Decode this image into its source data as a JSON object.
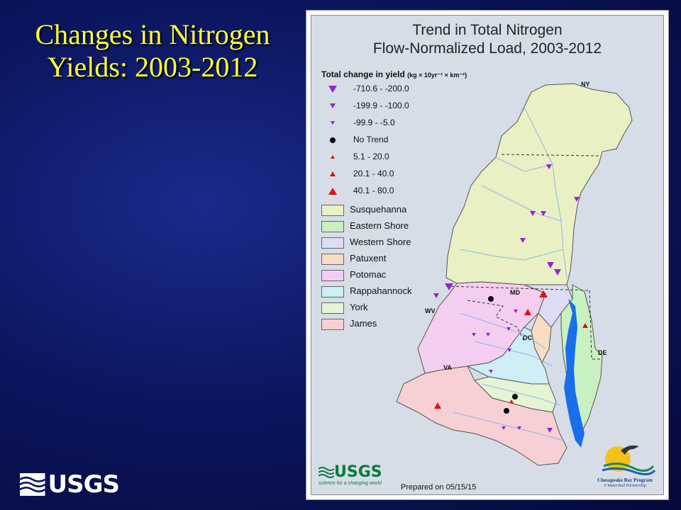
{
  "slide": {
    "title_line1": "Changes in Nitrogen",
    "title_line2": "Yields: 2003-2012",
    "logo_text": "USGS"
  },
  "map": {
    "title_line1": "Trend in Total Nitrogen",
    "title_line2": "Flow-Normalized Load, 2003-2012",
    "legend_title": "Total change in yield",
    "legend_units": "(kg × 10yr⁻¹ × km⁻²)",
    "symbol_classes": [
      {
        "label": "-710.6 - -200.0",
        "shape": "down-triangle",
        "size": "large",
        "color": "#9b1fd6"
      },
      {
        "label": "-199.9 - -100.0",
        "shape": "down-triangle",
        "size": "medium",
        "color": "#9b1fd6"
      },
      {
        "label": "-99.9 - -5.0",
        "shape": "down-triangle",
        "size": "small",
        "color": "#9b1fd6"
      },
      {
        "label": "No Trend",
        "shape": "circle",
        "size": "medium",
        "color": "#000000"
      },
      {
        "label": "5.1 - 20.0",
        "shape": "up-triangle",
        "size": "small",
        "color": "#e01010"
      },
      {
        "label": "20.1 - 40.0",
        "shape": "up-triangle",
        "size": "medium",
        "color": "#e01010"
      },
      {
        "label": "40.1 - 80.0",
        "shape": "up-triangle",
        "size": "large",
        "color": "#e01010"
      }
    ],
    "basins": [
      {
        "label": "Susquehanna",
        "color": "#e9f0c4"
      },
      {
        "label": "Eastern Shore",
        "color": "#c8f0c0"
      },
      {
        "label": "Western Shore",
        "color": "#dcdcf4"
      },
      {
        "label": "Patuxent",
        "color": "#f8dcc4"
      },
      {
        "label": "Potomac",
        "color": "#f4cef0"
      },
      {
        "label": "Rappahannock",
        "color": "#cceef4"
      },
      {
        "label": "York",
        "color": "#e4f4d4"
      },
      {
        "label": "James",
        "color": "#f6d0d4"
      }
    ],
    "state_labels": [
      "NY",
      "MD",
      "WV",
      "DC",
      "DE",
      "VA"
    ],
    "water_color": "#1a6ee8",
    "footer_logo": "USGS",
    "footer_logo_tagline": "science for a changing world",
    "prepared": "Prepared on 05/15/15",
    "partner_name": "Chesapeake Bay Program",
    "partner_tagline": "A Watershed Partnership"
  }
}
